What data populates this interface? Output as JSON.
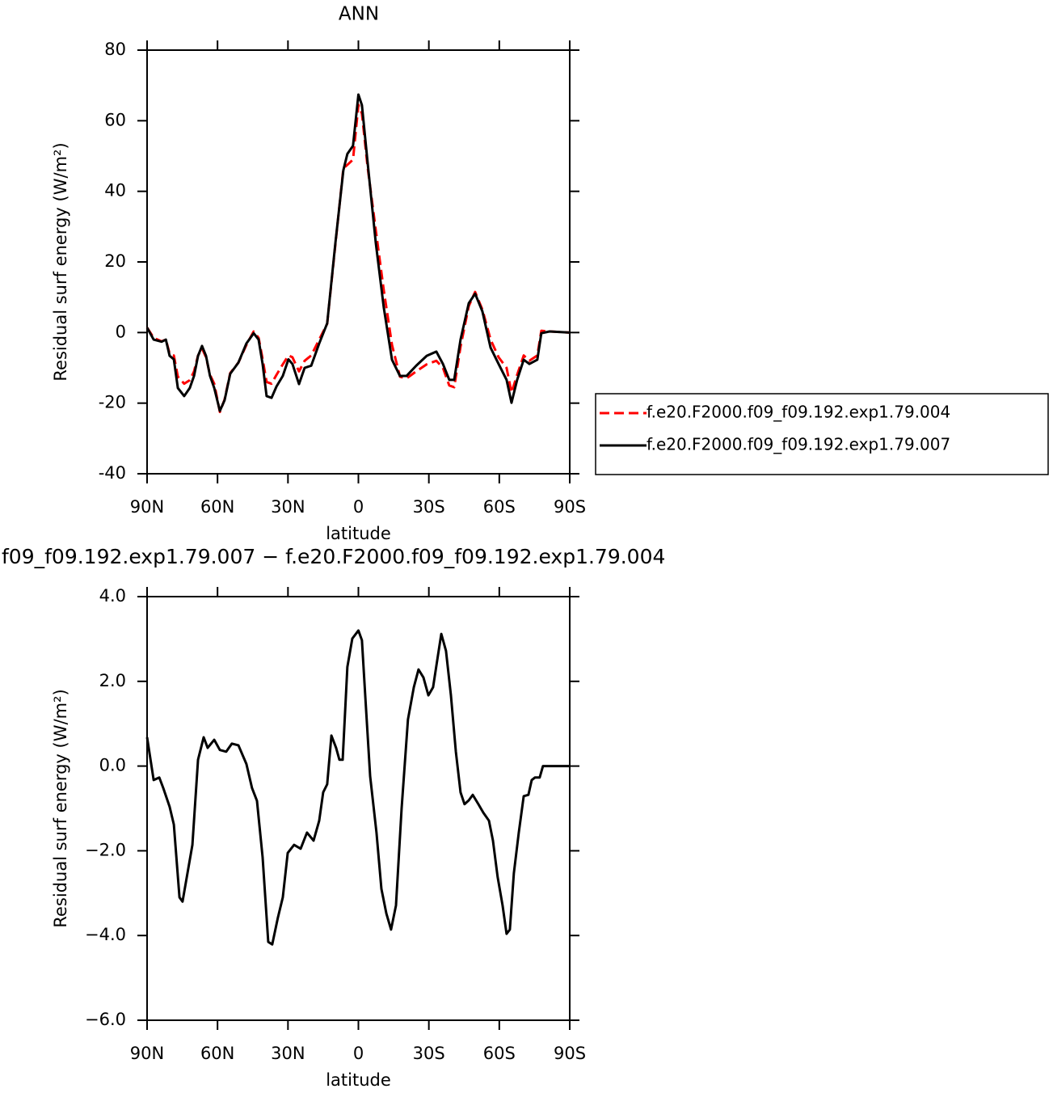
{
  "chart_data": [
    {
      "type": "line",
      "title": "ANN",
      "ylabel": "Residual surf energy (W/m²)",
      "xlabel": "latitude",
      "xlim": [
        90,
        -90
      ],
      "xticks": [
        {
          "value": 90,
          "label": "90N"
        },
        {
          "value": 60,
          "label": "60N"
        },
        {
          "value": 30,
          "label": "30N"
        },
        0,
        {
          "value": -30,
          "label": "30S"
        },
        {
          "value": -60,
          "label": "60S"
        },
        {
          "value": -90,
          "label": "90S"
        }
      ],
      "ylim": [
        -40,
        80
      ],
      "yticks": [
        -40,
        -20,
        0,
        20,
        40,
        60,
        80
      ],
      "legend": "right",
      "x": [
        90,
        87.2,
        83.8,
        82,
        80.4,
        78.6,
        76.9,
        74.2,
        71.8,
        70,
        68.3,
        66.6,
        64.9,
        63.2,
        61.4,
        59,
        57,
        54.6,
        51.1,
        47.7,
        44.6,
        42.5,
        40.8,
        39.1,
        37,
        34.9,
        32.2,
        29.8,
        28.1,
        25.3,
        22.9,
        20.1,
        16.7,
        13.3,
        9.8,
        6.4,
        4.7,
        2.3,
        0,
        -1.5,
        -3.9,
        -7.4,
        -10.8,
        -14.3,
        -17.7,
        -20.5,
        -24.6,
        -29.1,
        -33.2,
        -36,
        -38.7,
        -40.8,
        -43.5,
        -47,
        -49.7,
        -52.8,
        -56.3,
        -59.7,
        -63.1,
        -65.2,
        -67.6,
        -70.4,
        -72.8,
        -76.2,
        -77.9,
        -81.4,
        -90
      ],
      "series": [
        {
          "name": "f.e20.F2000.f09_f09.192.exp1.79.004",
          "color": "#ff0000",
          "dashed": true,
          "values": [
            1.4,
            -1.5,
            -2.5,
            -2,
            -6,
            -6.5,
            -12.5,
            -14.5,
            -13.5,
            -11,
            -6.5,
            -4.5,
            -7,
            -12,
            -14.5,
            -22.5,
            -19,
            -11.5,
            -8.5,
            -3.5,
            0.3,
            -1.5,
            -7.5,
            -14,
            -14.5,
            -12,
            -9,
            -6.5,
            -7,
            -11,
            -8,
            -6.5,
            -2,
            2.5,
            25,
            46.5,
            47.5,
            49,
            64.5,
            62,
            47,
            29,
            12,
            -3.5,
            -12.5,
            -13,
            -11,
            -9,
            -8,
            -10,
            -15,
            -15.5,
            -4,
            7.5,
            11.5,
            6.5,
            -2,
            -7,
            -10,
            -17,
            -12,
            -6.5,
            -8,
            -6.5,
            0.5,
            0.3,
            0
          ]
        },
        {
          "name": "f.e20.F2000.f09_f09.192.exp1.79.007",
          "color": "#000000",
          "dashed": false,
          "values": [
            1.4,
            -2,
            -2.6,
            -2,
            -6.6,
            -7.6,
            -15.7,
            -18,
            -15.7,
            -12.3,
            -6.6,
            -3.8,
            -6.6,
            -12.3,
            -15.7,
            -22.2,
            -19.2,
            -11.7,
            -8.5,
            -3.1,
            -0.2,
            -2,
            -8.9,
            -18,
            -18.5,
            -15.3,
            -12.3,
            -7.6,
            -8.9,
            -14.6,
            -10,
            -9.4,
            -3.1,
            2.6,
            25.4,
            46,
            50.6,
            52.9,
            67.4,
            64.4,
            48.3,
            25.4,
            7.1,
            -7.7,
            -12.3,
            -12.3,
            -9.4,
            -6.6,
            -5.4,
            -8.9,
            -13.4,
            -13.4,
            -2,
            8.3,
            11,
            6,
            -4.3,
            -8.9,
            -13.4,
            -19.9,
            -13.4,
            -7.7,
            -8.9,
            -7.7,
            -0.2,
            0.3,
            0
          ]
        }
      ]
    },
    {
      "type": "line",
      "title": "f09_f09.192.exp1.79.007 − f.e20.F2000.f09_f09.192.exp1.79.004",
      "ylabel": "Residual surf energy (W/m²)",
      "xlabel": "latitude",
      "xlim": [
        90,
        -90
      ],
      "xticks": [
        {
          "value": 90,
          "label": "90N"
        },
        {
          "value": 60,
          "label": "60N"
        },
        {
          "value": 30,
          "label": "30N"
        },
        0,
        {
          "value": -30,
          "label": "30S"
        },
        {
          "value": -60,
          "label": "60S"
        },
        {
          "value": -90,
          "label": "90S"
        }
      ],
      "ylim": [
        -6,
        4
      ],
      "yticks": [
        {
          "value": -6,
          "label": "−6.0"
        },
        {
          "value": -4,
          "label": "−4.0"
        },
        {
          "value": -2,
          "label": "−2.0"
        },
        {
          "value": 0,
          "label": "0.0"
        },
        {
          "value": 2,
          "label": "2.0"
        },
        {
          "value": 4,
          "label": "4.0"
        }
      ],
      "x": [
        90,
        87.2,
        84.8,
        83.1,
        80.4,
        78.6,
        76.2,
        74.9,
        72.8,
        70.7,
        68.3,
        65.9,
        64.2,
        61.4,
        59,
        56.3,
        53.9,
        51.1,
        47.7,
        45.3,
        43.2,
        40.8,
        38.4,
        36.7,
        34.3,
        32.2,
        30.1,
        27.4,
        24.6,
        21.9,
        19.1,
        16.7,
        15,
        13.3,
        11.5,
        9.5,
        8.1,
        6.7,
        4.7,
        2.6,
        0,
        -1.5,
        -2.9,
        -5,
        -7.7,
        -9.8,
        -11.9,
        -13.9,
        -16,
        -18.4,
        -21.1,
        -23.6,
        -25.6,
        -27.7,
        -29.8,
        -31.8,
        -33.9,
        -35.3,
        -37.3,
        -39.4,
        -41.5,
        -43.5,
        -45.2,
        -47,
        -48.7,
        -51.1,
        -53.2,
        -55.6,
        -57.3,
        -59.3,
        -61.4,
        -63.1,
        -64.5,
        -66.2,
        -68.3,
        -70.4,
        -72.4,
        -73.8,
        -75.2,
        -77.2,
        -78.6,
        -81.4,
        -90
      ],
      "series": [
        {
          "color": "#000000",
          "dashed": false,
          "values": [
            0.68,
            -0.33,
            -0.27,
            -0.52,
            -0.96,
            -1.38,
            -3.1,
            -3.2,
            -2.53,
            -1.86,
            0.15,
            0.68,
            0.43,
            0.62,
            0.38,
            0.34,
            0.53,
            0.49,
            0.05,
            -0.52,
            -0.82,
            -2.15,
            -4.15,
            -4.21,
            -3.58,
            -3.1,
            -2.05,
            -1.86,
            -1.95,
            -1.57,
            -1.76,
            -1.29,
            -0.62,
            -0.43,
            0.72,
            0.43,
            0.15,
            0.15,
            2.34,
            3.01,
            3.2,
            2.97,
            1.67,
            -0.24,
            -1.57,
            -2.9,
            -3.48,
            -3.86,
            -3.29,
            -1.0,
            1.1,
            1.86,
            2.28,
            2.09,
            1.67,
            1.86,
            2.62,
            3.12,
            2.72,
            1.67,
            0.34,
            -0.62,
            -0.9,
            -0.81,
            -0.68,
            -0.9,
            -1.1,
            -1.29,
            -1.76,
            -2.62,
            -3.29,
            -3.96,
            -3.86,
            -2.53,
            -1.57,
            -0.71,
            -0.68,
            -0.33,
            -0.27,
            -0.27,
            0,
            0,
            0
          ]
        }
      ]
    }
  ]
}
